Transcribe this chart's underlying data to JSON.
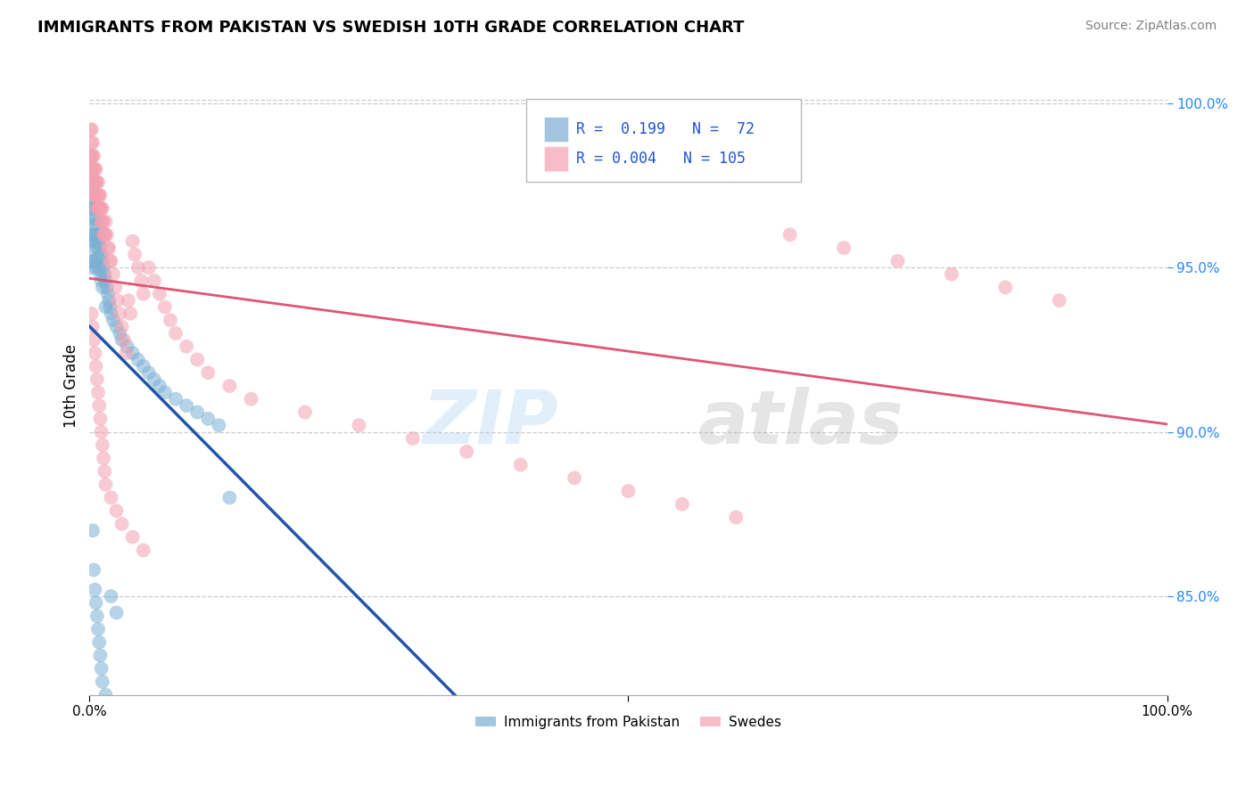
{
  "title": "IMMIGRANTS FROM PAKISTAN VS SWEDISH 10TH GRADE CORRELATION CHART",
  "source_text": "Source: ZipAtlas.com",
  "ylabel": "10th Grade",
  "xlim": [
    0.0,
    1.0
  ],
  "ylim": [
    0.82,
    1.008
  ],
  "yticks": [
    0.85,
    0.9,
    0.95,
    1.0
  ],
  "ytick_labels": [
    "85.0%",
    "90.0%",
    "95.0%",
    "100.0%"
  ],
  "legend_r_blue": "0.199",
  "legend_n_blue": "72",
  "legend_r_pink": "0.004",
  "legend_n_pink": "105",
  "blue_color": "#7BAFD4",
  "pink_color": "#F4A0B0",
  "blue_line_color": "#2255AA",
  "pink_line_color": "#E05575",
  "watermark_zip": "ZIP",
  "watermark_atlas": "atlas",
  "blue_scatter_x": [
    0.001,
    0.001,
    0.001,
    0.002,
    0.002,
    0.002,
    0.002,
    0.003,
    0.003,
    0.003,
    0.003,
    0.004,
    0.004,
    0.004,
    0.005,
    0.005,
    0.005,
    0.006,
    0.006,
    0.006,
    0.007,
    0.007,
    0.008,
    0.008,
    0.009,
    0.009,
    0.01,
    0.01,
    0.011,
    0.011,
    0.012,
    0.012,
    0.013,
    0.014,
    0.015,
    0.015,
    0.016,
    0.017,
    0.018,
    0.019,
    0.02,
    0.022,
    0.025,
    0.028,
    0.03,
    0.035,
    0.04,
    0.045,
    0.05,
    0.055,
    0.06,
    0.065,
    0.07,
    0.08,
    0.09,
    0.1,
    0.11,
    0.12,
    0.13,
    0.003,
    0.004,
    0.005,
    0.006,
    0.007,
    0.008,
    0.009,
    0.01,
    0.011,
    0.012,
    0.015,
    0.02,
    0.025
  ],
  "blue_scatter_y": [
    0.968,
    0.96,
    0.952,
    0.972,
    0.965,
    0.958,
    0.95,
    0.975,
    0.968,
    0.96,
    0.952,
    0.97,
    0.963,
    0.956,
    0.968,
    0.96,
    0.952,
    0.965,
    0.958,
    0.95,
    0.963,
    0.956,
    0.96,
    0.953,
    0.958,
    0.95,
    0.956,
    0.948,
    0.954,
    0.946,
    0.952,
    0.944,
    0.95,
    0.948,
    0.946,
    0.938,
    0.944,
    0.942,
    0.94,
    0.938,
    0.936,
    0.934,
    0.932,
    0.93,
    0.928,
    0.926,
    0.924,
    0.922,
    0.92,
    0.918,
    0.916,
    0.914,
    0.912,
    0.91,
    0.908,
    0.906,
    0.904,
    0.902,
    0.88,
    0.87,
    0.858,
    0.852,
    0.848,
    0.844,
    0.84,
    0.836,
    0.832,
    0.828,
    0.824,
    0.82,
    0.85,
    0.845
  ],
  "pink_scatter_x": [
    0.001,
    0.001,
    0.001,
    0.002,
    0.002,
    0.002,
    0.002,
    0.002,
    0.003,
    0.003,
    0.003,
    0.003,
    0.004,
    0.004,
    0.004,
    0.004,
    0.005,
    0.005,
    0.005,
    0.006,
    0.006,
    0.006,
    0.007,
    0.007,
    0.007,
    0.008,
    0.008,
    0.008,
    0.009,
    0.009,
    0.01,
    0.01,
    0.011,
    0.011,
    0.012,
    0.012,
    0.013,
    0.013,
    0.014,
    0.015,
    0.015,
    0.016,
    0.017,
    0.018,
    0.019,
    0.02,
    0.022,
    0.024,
    0.026,
    0.028,
    0.03,
    0.032,
    0.034,
    0.036,
    0.038,
    0.04,
    0.042,
    0.045,
    0.048,
    0.05,
    0.055,
    0.06,
    0.065,
    0.07,
    0.075,
    0.08,
    0.09,
    0.1,
    0.11,
    0.13,
    0.15,
    0.2,
    0.25,
    0.3,
    0.35,
    0.4,
    0.45,
    0.5,
    0.55,
    0.6,
    0.65,
    0.7,
    0.75,
    0.8,
    0.85,
    0.9,
    0.002,
    0.003,
    0.004,
    0.005,
    0.006,
    0.007,
    0.008,
    0.009,
    0.01,
    0.011,
    0.012,
    0.013,
    0.014,
    0.015,
    0.02,
    0.025,
    0.03,
    0.04,
    0.05
  ],
  "pink_scatter_y": [
    0.992,
    0.984,
    0.976,
    0.992,
    0.988,
    0.984,
    0.98,
    0.976,
    0.988,
    0.984,
    0.98,
    0.976,
    0.984,
    0.98,
    0.976,
    0.972,
    0.98,
    0.976,
    0.972,
    0.98,
    0.976,
    0.972,
    0.976,
    0.972,
    0.968,
    0.976,
    0.972,
    0.968,
    0.972,
    0.968,
    0.972,
    0.968,
    0.968,
    0.964,
    0.968,
    0.964,
    0.964,
    0.96,
    0.96,
    0.964,
    0.96,
    0.96,
    0.956,
    0.956,
    0.952,
    0.952,
    0.948,
    0.944,
    0.94,
    0.936,
    0.932,
    0.928,
    0.924,
    0.94,
    0.936,
    0.958,
    0.954,
    0.95,
    0.946,
    0.942,
    0.95,
    0.946,
    0.942,
    0.938,
    0.934,
    0.93,
    0.926,
    0.922,
    0.918,
    0.914,
    0.91,
    0.906,
    0.902,
    0.898,
    0.894,
    0.89,
    0.886,
    0.882,
    0.878,
    0.874,
    0.96,
    0.956,
    0.952,
    0.948,
    0.944,
    0.94,
    0.936,
    0.932,
    0.928,
    0.924,
    0.92,
    0.916,
    0.912,
    0.908,
    0.904,
    0.9,
    0.896,
    0.892,
    0.888,
    0.884,
    0.88,
    0.876,
    0.872,
    0.868,
    0.864
  ]
}
